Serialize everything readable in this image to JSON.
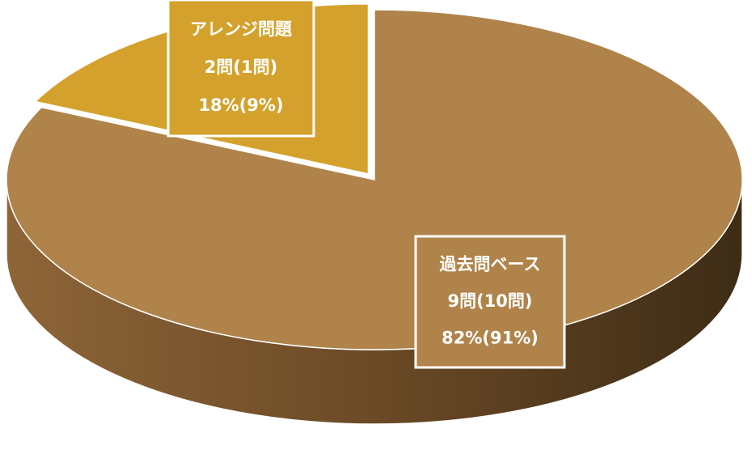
{
  "chart_data": {
    "type": "pie3d",
    "categories": [
      "アレンジ問題",
      "過去問ベース"
    ],
    "values": [
      18,
      82
    ],
    "value_labels": [
      "18%(9%)",
      "82%(91%)"
    ],
    "details": [
      "2問(1問)",
      "9問(10問)"
    ],
    "colors": [
      "#d4a22c",
      "#b0834a"
    ]
  }
}
